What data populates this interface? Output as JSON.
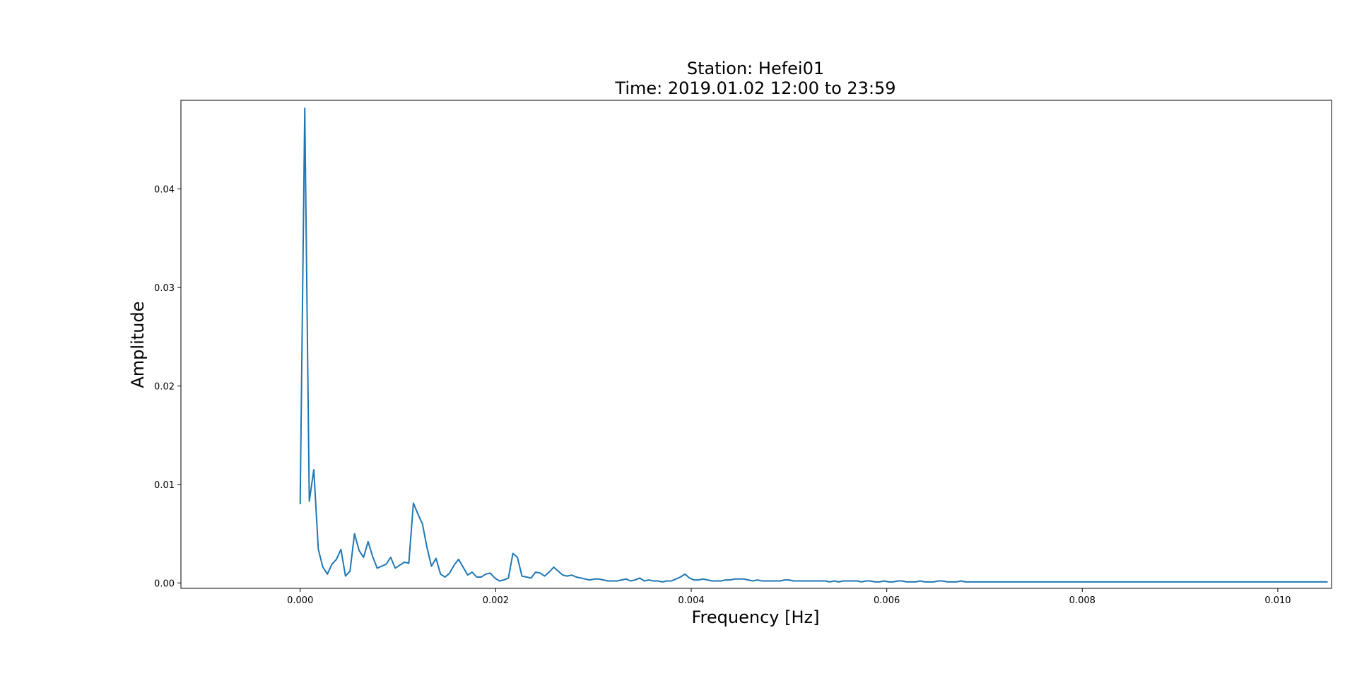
{
  "chart_data": {
    "type": "line",
    "title": "Station: Hefei01",
    "subtitle": "Time: 2019.01.02 12:00 to 23:59",
    "xlabel": "Frequency [Hz]",
    "ylabel": "Amplitude",
    "xlim": [
      -0.00122,
      0.01055
    ],
    "ylim": [
      -0.00055,
      0.049
    ],
    "grid": false,
    "legend": "none",
    "x_ticks": [
      {
        "value": 0.0,
        "label": "0.000"
      },
      {
        "value": 0.002,
        "label": "0.002"
      },
      {
        "value": 0.004,
        "label": "0.004"
      },
      {
        "value": 0.006,
        "label": "0.006"
      },
      {
        "value": 0.008,
        "label": "0.008"
      },
      {
        "value": 0.01,
        "label": "0.010"
      }
    ],
    "y_ticks": [
      {
        "value": 0.0,
        "label": "0.00"
      },
      {
        "value": 0.01,
        "label": "0.01"
      },
      {
        "value": 0.02,
        "label": "0.02"
      },
      {
        "value": 0.03,
        "label": "0.03"
      },
      {
        "value": 0.04,
        "label": "0.04"
      }
    ],
    "series": [
      {
        "color": "#1f77b4",
        "x_start": 0.0,
        "x_step": 4.63e-05,
        "values": [
          0.008,
          0.0482,
          0.0083,
          0.0115,
          0.0034,
          0.0016,
          0.0009,
          0.0019,
          0.0024,
          0.0034,
          0.0007,
          0.0012,
          0.005,
          0.0033,
          0.0026,
          0.0042,
          0.0027,
          0.0015,
          0.0017,
          0.0019,
          0.0026,
          0.0015,
          0.0018,
          0.0021,
          0.002,
          0.0081,
          0.007,
          0.006,
          0.0036,
          0.0017,
          0.0025,
          0.0009,
          0.0006,
          0.001,
          0.0018,
          0.0024,
          0.0016,
          0.0008,
          0.0011,
          0.0006,
          0.0006,
          0.0009,
          0.001,
          0.0005,
          0.0002,
          0.0003,
          0.0005,
          0.003,
          0.0026,
          0.0007,
          0.0006,
          0.0005,
          0.0011,
          0.001,
          0.0007,
          0.0011,
          0.0016,
          0.0012,
          0.0008,
          0.0007,
          0.0008,
          0.0006,
          0.0005,
          0.0004,
          0.0003,
          0.0004,
          0.0004,
          0.0003,
          0.0002,
          0.0002,
          0.0002,
          0.0003,
          0.0004,
          0.0002,
          0.0003,
          0.0005,
          0.0002,
          0.0003,
          0.0002,
          0.0002,
          0.0001,
          0.0002,
          0.0002,
          0.0004,
          0.0006,
          0.0009,
          0.0005,
          0.0003,
          0.0003,
          0.0004,
          0.0003,
          0.0002,
          0.0002,
          0.0002,
          0.0003,
          0.0003,
          0.0004,
          0.0004,
          0.0004,
          0.0003,
          0.0002,
          0.0003,
          0.0002,
          0.0002,
          0.0002,
          0.0002,
          0.0002,
          0.0003,
          0.0003,
          0.0002,
          0.0002,
          0.0002,
          0.0002,
          0.0002,
          0.0002,
          0.0002,
          0.0002,
          0.0001,
          0.0002,
          0.0001,
          0.0002,
          0.0002,
          0.0002,
          0.0002,
          0.0001,
          0.0002,
          0.0002,
          0.0001,
          0.0001,
          0.0002,
          0.0001,
          0.0001,
          0.0002,
          0.0002,
          0.0001,
          0.0001,
          0.0001,
          0.0002,
          0.0001,
          0.0001,
          0.0001,
          0.0002,
          0.0002,
          0.0001,
          0.0001,
          0.0001,
          0.0002,
          0.0001,
          0.0001,
          0.0001,
          0.0001,
          0.0001,
          0.0001,
          0.0001,
          0.0001,
          0.0001,
          0.0001,
          0.0001,
          0.0001,
          0.0001,
          0.0001,
          0.0001,
          0.0001,
          0.0001,
          0.0001,
          0.0001,
          0.0001,
          0.0001,
          0.0001,
          0.0001,
          0.0001,
          0.0001,
          0.0001,
          0.0001,
          0.0001,
          0.0001,
          0.0001,
          0.0001,
          0.0001,
          0.0001,
          0.0001,
          0.0001,
          0.0001,
          0.0001,
          0.0001,
          0.0001,
          0.0001,
          0.0001,
          0.0001,
          0.0001,
          0.0001,
          0.0001,
          0.0001,
          0.0001,
          0.0001,
          0.0001,
          0.0001,
          0.0001,
          0.0001,
          0.0001,
          0.0001,
          0.0001,
          0.0001,
          0.0001,
          0.0001,
          0.0001,
          0.0001,
          0.0001,
          0.0001,
          0.0001,
          0.0001,
          0.0001,
          0.0001,
          0.0001,
          0.0001,
          0.0001,
          0.0001,
          0.0001,
          0.0001,
          0.0001,
          0.0001,
          0.0001,
          0.0001,
          0.0001,
          0.0001,
          0.0001,
          0.0001,
          0.0001
        ]
      }
    ]
  }
}
